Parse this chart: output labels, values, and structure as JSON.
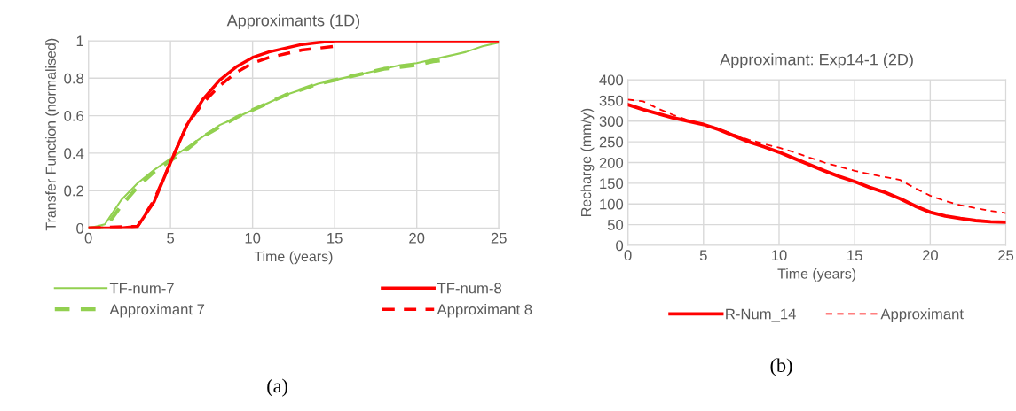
{
  "chart_data": [
    {
      "type": "line",
      "title": "Approximants (1D)",
      "xlabel": "Time (years)",
      "ylabel": "Transfer Function (normalised)",
      "xlim": [
        0,
        25
      ],
      "xticks": [
        0,
        5,
        10,
        15,
        20,
        25
      ],
      "ylim": [
        0,
        1
      ],
      "yticks": [
        0,
        0.2,
        0.4,
        0.6,
        0.8,
        1
      ],
      "grid": true,
      "legend": "bottom",
      "marker": "none",
      "annotations": [
        "(a)"
      ],
      "series": [
        {
          "name": "TF-num-7",
          "color": "#92d050",
          "line_style": "solid",
          "x": [
            0,
            0.5,
            1,
            2,
            3,
            4,
            5,
            6,
            7,
            8,
            9,
            10,
            11,
            12,
            13,
            14,
            15,
            16,
            17,
            18,
            19,
            20,
            21,
            22,
            23,
            24,
            25
          ],
          "values": [
            0,
            0.01,
            0.02,
            0.15,
            0.24,
            0.31,
            0.37,
            0.43,
            0.49,
            0.55,
            0.59,
            0.63,
            0.67,
            0.71,
            0.74,
            0.77,
            0.79,
            0.81,
            0.83,
            0.85,
            0.87,
            0.88,
            0.9,
            0.92,
            0.94,
            0.97,
            0.99
          ]
        },
        {
          "name": "Approximant 7",
          "color": "#92d050",
          "line_style": "dashed",
          "x": [
            0,
            1,
            2,
            3,
            4,
            5,
            6,
            7,
            8,
            9,
            10,
            11,
            12,
            13,
            14,
            15,
            16,
            17,
            18,
            19,
            20,
            21,
            22
          ],
          "values": [
            0,
            0,
            0.12,
            0.22,
            0.3,
            0.36,
            0.42,
            0.49,
            0.54,
            0.59,
            0.63,
            0.67,
            0.71,
            0.74,
            0.77,
            0.79,
            0.81,
            0.83,
            0.85,
            0.86,
            0.87,
            0.89,
            0.9
          ]
        },
        {
          "name": "TF-num-8",
          "color": "#ff0000",
          "line_style": "solid",
          "x": [
            0,
            2,
            3,
            4,
            5,
            6,
            7,
            8,
            9,
            10,
            11,
            12,
            13,
            14,
            15,
            16,
            17,
            18,
            19,
            20,
            21,
            22,
            23,
            24,
            25
          ],
          "values": [
            0,
            0,
            0.01,
            0.14,
            0.35,
            0.55,
            0.69,
            0.79,
            0.86,
            0.91,
            0.94,
            0.96,
            0.98,
            0.99,
            1,
            1,
            1,
            1,
            1,
            1,
            1,
            1,
            1,
            1,
            1
          ]
        },
        {
          "name": "Approximant 8",
          "color": "#ff0000",
          "line_style": "dashed",
          "x": [
            0,
            3,
            4,
            5,
            6,
            7,
            8,
            9,
            10,
            11,
            12,
            13,
            14,
            15
          ],
          "values": [
            0,
            0.01,
            0.15,
            0.35,
            0.55,
            0.67,
            0.76,
            0.83,
            0.88,
            0.91,
            0.93,
            0.95,
            0.96,
            0.97
          ]
        }
      ]
    },
    {
      "type": "line",
      "title": "Approximant: Exp14-1 (2D)",
      "xlabel": "Time (years)",
      "ylabel": "Recharge (mm/y)",
      "xlim": [
        0,
        25
      ],
      "xticks": [
        0,
        5,
        10,
        15,
        20,
        25
      ],
      "ylim": [
        0,
        400
      ],
      "yticks": [
        0,
        50,
        100,
        150,
        200,
        250,
        300,
        350,
        400
      ],
      "grid": true,
      "legend": "bottom",
      "marker": "none",
      "annotations": [
        "(b)"
      ],
      "series": [
        {
          "name": "R-Num_14",
          "color": "#ff0000",
          "line_style": "solid",
          "x": [
            0,
            1,
            2,
            3,
            4,
            5,
            6,
            7,
            8,
            9,
            10,
            11,
            12,
            13,
            14,
            15,
            16,
            17,
            18,
            19,
            20,
            21,
            22,
            23,
            24,
            25
          ],
          "values": [
            340,
            328,
            318,
            308,
            300,
            292,
            280,
            265,
            250,
            238,
            225,
            210,
            195,
            180,
            166,
            154,
            140,
            128,
            113,
            95,
            80,
            71,
            65,
            60,
            57,
            56
          ]
        },
        {
          "name": "Approximant",
          "color": "#ff0000",
          "line_style": "dashed",
          "x": [
            0,
            1,
            2,
            3,
            4,
            5,
            6,
            7,
            8,
            9,
            10,
            11,
            12,
            13,
            14,
            15,
            16,
            17,
            18,
            19,
            20,
            21,
            22,
            23,
            24,
            25
          ],
          "values": [
            352,
            348,
            330,
            315,
            302,
            292,
            282,
            268,
            255,
            245,
            236,
            225,
            212,
            200,
            190,
            180,
            172,
            165,
            158,
            138,
            120,
            107,
            97,
            90,
            83,
            78
          ]
        }
      ]
    }
  ]
}
